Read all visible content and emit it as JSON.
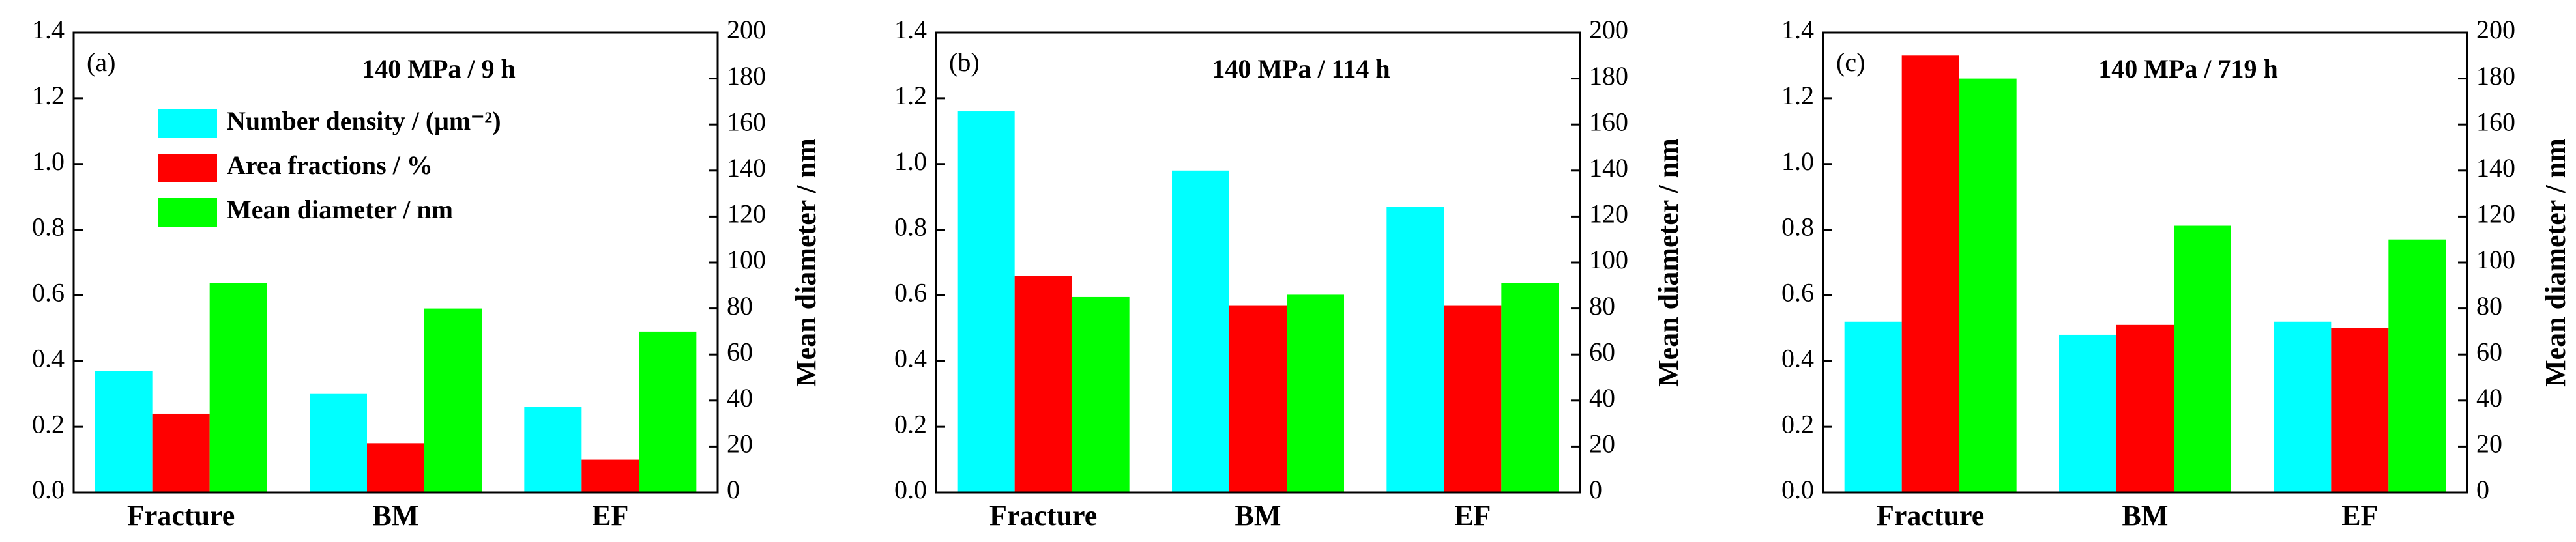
{
  "chart_data": [
    {
      "type": "bar",
      "panel_label": "(a)",
      "title": "140 MPa / 9 h",
      "categories": [
        "Fracture",
        "BM",
        "EF"
      ],
      "series": [
        {
          "name": "Number density / (μm⁻²)",
          "color": "#00ffff",
          "values": [
            0.37,
            0.3,
            0.26
          ]
        },
        {
          "name": "Area fractions / %",
          "color": "#ff0000",
          "values": [
            0.24,
            0.15,
            0.1
          ]
        },
        {
          "name": "Mean diameter / nm",
          "color": "#00ff00",
          "axis": "y2",
          "values": [
            91,
            80,
            70
          ]
        }
      ],
      "ylim": [
        0,
        1.4
      ],
      "yticks": [
        {
          "value": 0,
          "label": "0.0"
        },
        {
          "value": 0.2,
          "label": "0.2"
        },
        {
          "value": 0.4,
          "label": "0.4"
        },
        {
          "value": 0.6,
          "label": "0.6"
        },
        {
          "value": 0.8,
          "label": "0.8"
        },
        {
          "value": 1,
          "label": "1.0"
        },
        {
          "value": 1.2,
          "label": "1.2"
        },
        {
          "value": 1.4,
          "label": "1.4"
        }
      ],
      "y2lim": [
        0,
        200
      ],
      "y2ticks": [
        0,
        20,
        40,
        60,
        80,
        100,
        120,
        140,
        160,
        180,
        200
      ],
      "y2label": "Mean diameter / nm",
      "legend": true
    },
    {
      "type": "bar",
      "panel_label": "(b)",
      "title": "140 MPa / 114 h",
      "categories": [
        "Fracture",
        "BM",
        "EF"
      ],
      "series": [
        {
          "name": "Number density / (μm⁻²)",
          "color": "#00ffff",
          "values": [
            1.16,
            0.98,
            0.87
          ]
        },
        {
          "name": "Area fractions / %",
          "color": "#ff0000",
          "values": [
            0.66,
            0.57,
            0.57
          ]
        },
        {
          "name": "Mean diameter / nm",
          "color": "#00ff00",
          "axis": "y2",
          "values": [
            85,
            86,
            91
          ]
        }
      ],
      "ylim": [
        0,
        1.4
      ],
      "yticks": [
        {
          "value": 0,
          "label": "0.0"
        },
        {
          "value": 0.2,
          "label": "0.2"
        },
        {
          "value": 0.4,
          "label": "0.4"
        },
        {
          "value": 0.6,
          "label": "0.6"
        },
        {
          "value": 0.8,
          "label": "0.8"
        },
        {
          "value": 1,
          "label": "1.0"
        },
        {
          "value": 1.2,
          "label": "1.2"
        },
        {
          "value": 1.4,
          "label": "1.4"
        }
      ],
      "y2lim": [
        0,
        200
      ],
      "y2ticks": [
        0,
        20,
        40,
        60,
        80,
        100,
        120,
        140,
        160,
        180,
        200
      ],
      "y2label": "Mean diameter / nm",
      "legend": false
    },
    {
      "type": "bar",
      "panel_label": "(c)",
      "title": "140 MPa / 719 h",
      "categories": [
        "Fracture",
        "BM",
        "EF"
      ],
      "series": [
        {
          "name": "Number density / (μm⁻²)",
          "color": "#00ffff",
          "values": [
            0.52,
            0.48,
            0.52
          ]
        },
        {
          "name": "Area fractions / %",
          "color": "#ff0000",
          "values": [
            1.33,
            0.51,
            0.5
          ]
        },
        {
          "name": "Mean diameter / nm",
          "color": "#00ff00",
          "axis": "y2",
          "values": [
            180,
            116,
            110
          ]
        }
      ],
      "ylim": [
        0,
        1.4
      ],
      "yticks": [
        {
          "value": 0,
          "label": "0.0"
        },
        {
          "value": 0.2,
          "label": "0.2"
        },
        {
          "value": 0.4,
          "label": "0.4"
        },
        {
          "value": 0.6,
          "label": "0.6"
        },
        {
          "value": 0.8,
          "label": "0.8"
        },
        {
          "value": 1,
          "label": "1.0"
        },
        {
          "value": 1.2,
          "label": "1.2"
        },
        {
          "value": 1.4,
          "label": "1.4"
        }
      ],
      "y2lim": [
        0,
        200
      ],
      "y2ticks": [
        0,
        20,
        40,
        60,
        80,
        100,
        120,
        140,
        160,
        180,
        200
      ],
      "y2label": "Mean diameter / nm",
      "legend": false
    }
  ]
}
